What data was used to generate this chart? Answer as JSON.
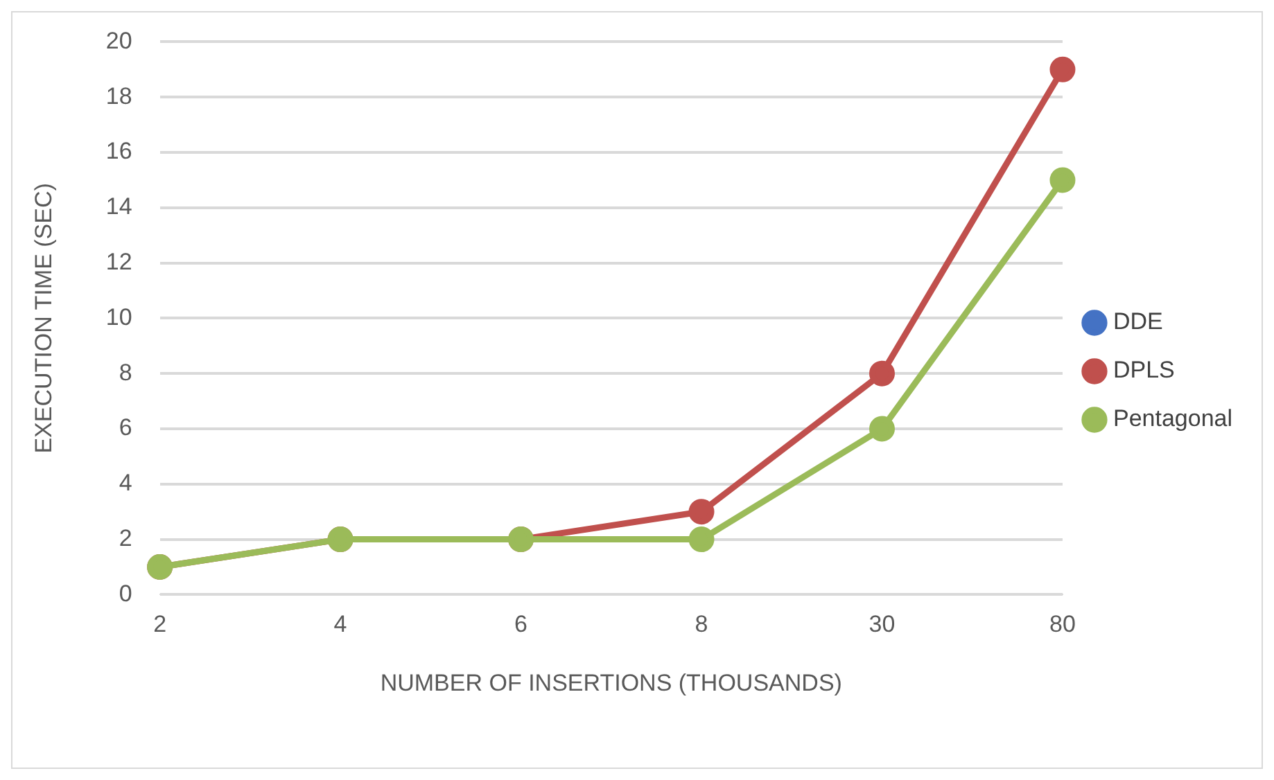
{
  "chart_data": {
    "type": "line",
    "xlabel": "NUMBER OF INSERTIONS (THOUSANDS)",
    "ylabel": "EXECUTION TIME (SEC)",
    "categories": [
      "2",
      "4",
      "6",
      "8",
      "30",
      "80"
    ],
    "series": [
      {
        "name": "DDE",
        "color": "#4472c4",
        "values": [
          null,
          null,
          null,
          null,
          null,
          null
        ]
      },
      {
        "name": "DPLS",
        "color": "#c0504d",
        "values": [
          1,
          2,
          2,
          3,
          8,
          19
        ]
      },
      {
        "name": "Pentagonal",
        "color": "#9bbb59",
        "values": [
          1,
          2,
          2,
          2,
          6,
          15
        ]
      }
    ],
    "ylim": [
      0,
      20
    ],
    "yticks": [
      0,
      2,
      4,
      6,
      8,
      10,
      12,
      14,
      16,
      18,
      20
    ],
    "grid": "y",
    "legend": "right",
    "marker": "circle",
    "line_style": "solid"
  }
}
